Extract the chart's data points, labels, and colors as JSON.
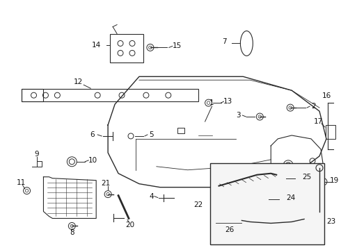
{
  "bg_color": "#ffffff",
  "line_color": "#2a2a2a",
  "label_color": "#111111",
  "fs": 7.5
}
